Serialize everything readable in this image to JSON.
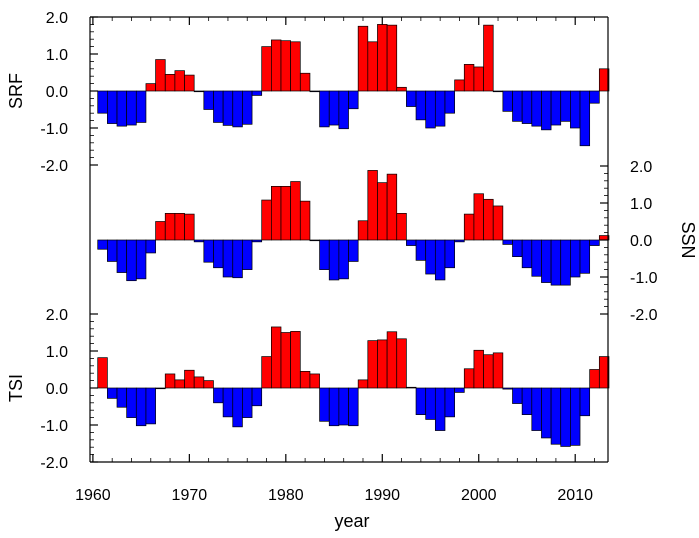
{
  "colors": {
    "positive": "#ff0000",
    "negative": "#0000ff",
    "axis": "#000000"
  },
  "chart_data": {
    "type": "bar",
    "xlabel": "year",
    "x_ticks": [
      1960,
      1970,
      1980,
      1990,
      2000,
      2010
    ],
    "xlim": [
      1959.7,
      2013.4
    ],
    "panels": [
      {
        "ylabel": "SRF",
        "ylabel_side": "left",
        "ylim": [
          -2.0,
          2.0
        ],
        "yticks": [
          "2.0",
          "1.0",
          "0.0",
          "-1.0",
          "-2.0"
        ],
        "x": [
          1961,
          1962,
          1963,
          1964,
          1965,
          1966,
          1967,
          1968,
          1969,
          1970,
          1971,
          1972,
          1973,
          1974,
          1975,
          1976,
          1977,
          1978,
          1979,
          1980,
          1981,
          1982,
          1983,
          1984,
          1985,
          1986,
          1987,
          1988,
          1989,
          1990,
          1991,
          1992,
          1993,
          1994,
          1995,
          1996,
          1997,
          1998,
          1999,
          2000,
          2001,
          2002,
          2003,
          2004,
          2005,
          2006,
          2007,
          2008,
          2009,
          2010,
          2011,
          2012,
          2013
        ],
        "values": [
          -0.6,
          -0.88,
          -0.95,
          -0.92,
          -0.85,
          0.2,
          0.85,
          0.45,
          0.55,
          0.43,
          -0.02,
          -0.5,
          -0.85,
          -0.93,
          -0.97,
          -0.9,
          -0.12,
          1.2,
          1.38,
          1.36,
          1.33,
          0.48,
          -0.02,
          -0.97,
          -0.92,
          -1.02,
          -0.48,
          1.75,
          1.33,
          1.8,
          1.78,
          0.1,
          -0.42,
          -0.78,
          -1.0,
          -0.95,
          -0.6,
          0.3,
          0.72,
          0.65,
          1.78,
          -0.02,
          -0.55,
          -0.82,
          -0.88,
          -0.95,
          -1.05,
          -0.92,
          -0.82,
          -1.0,
          -1.48,
          -0.33,
          0.6
        ]
      },
      {
        "ylabel": "SSN",
        "ylabel_side": "right",
        "ylim": [
          -2.0,
          2.0
        ],
        "yticks": [
          "2.0",
          "1.0",
          "0.0",
          "-1.0",
          "-2.0"
        ],
        "x": [
          1961,
          1962,
          1963,
          1964,
          1965,
          1966,
          1967,
          1968,
          1969,
          1970,
          1971,
          1972,
          1973,
          1974,
          1975,
          1976,
          1977,
          1978,
          1979,
          1980,
          1981,
          1982,
          1983,
          1984,
          1985,
          1986,
          1987,
          1988,
          1989,
          1990,
          1991,
          1992,
          1993,
          1994,
          1995,
          1996,
          1997,
          1998,
          1999,
          2000,
          2001,
          2002,
          2003,
          2004,
          2005,
          2006,
          2007,
          2008,
          2009,
          2010,
          2011,
          2012,
          2013
        ],
        "values": [
          -0.25,
          -0.58,
          -0.88,
          -1.1,
          -1.05,
          -0.35,
          0.5,
          0.72,
          0.72,
          0.7,
          -0.05,
          -0.6,
          -0.75,
          -1.0,
          -1.02,
          -0.8,
          -0.05,
          1.08,
          1.45,
          1.45,
          1.58,
          1.05,
          -0.02,
          -0.8,
          -1.08,
          -1.05,
          -0.58,
          0.52,
          1.88,
          1.55,
          1.78,
          0.72,
          -0.15,
          -0.55,
          -0.92,
          -1.08,
          -0.75,
          -0.05,
          0.7,
          1.25,
          1.1,
          0.92,
          -0.12,
          -0.45,
          -0.75,
          -0.98,
          -1.15,
          -1.22,
          -1.22,
          -1.0,
          -0.9,
          -0.15,
          0.12
        ]
      },
      {
        "ylabel": "TSI",
        "ylabel_side": "left",
        "ylim": [
          -2.0,
          2.0
        ],
        "yticks": [
          "2.0",
          "1.0",
          "0.0",
          "-1.0",
          "-2.0"
        ],
        "x": [
          1961,
          1962,
          1963,
          1964,
          1965,
          1966,
          1967,
          1968,
          1969,
          1970,
          1971,
          1972,
          1973,
          1974,
          1975,
          1976,
          1977,
          1978,
          1979,
          1980,
          1981,
          1982,
          1983,
          1984,
          1985,
          1986,
          1987,
          1988,
          1989,
          1990,
          1991,
          1992,
          1993,
          1994,
          1995,
          1996,
          1997,
          1998,
          1999,
          2000,
          2001,
          2002,
          2003,
          2004,
          2005,
          2006,
          2007,
          2008,
          2009,
          2010,
          2011,
          2012,
          2013
        ],
        "values": [
          0.82,
          -0.28,
          -0.52,
          -0.8,
          -1.02,
          -0.97,
          -0.02,
          0.38,
          0.22,
          0.48,
          0.3,
          0.2,
          -0.4,
          -0.78,
          -1.05,
          -0.8,
          -0.48,
          0.85,
          1.65,
          1.5,
          1.53,
          0.45,
          0.38,
          -0.9,
          -1.02,
          -1.0,
          -1.02,
          0.22,
          1.28,
          1.3,
          1.52,
          1.33,
          0.02,
          -0.72,
          -0.85,
          -1.15,
          -0.78,
          -0.12,
          0.52,
          1.02,
          0.9,
          0.95,
          -0.03,
          -0.42,
          -0.72,
          -1.15,
          -1.35,
          -1.52,
          -1.58,
          -1.55,
          -0.75,
          0.5,
          0.85
        ]
      }
    ]
  }
}
